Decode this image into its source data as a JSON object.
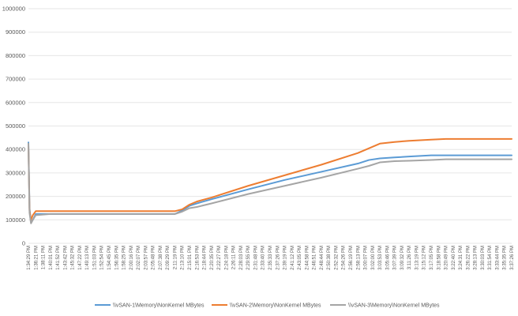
{
  "chart_data": {
    "type": "line",
    "title": "",
    "xlabel": "",
    "ylabel": "",
    "ylim": [
      0,
      1000000
    ],
    "yticks": [
      0,
      100000,
      200000,
      300000,
      400000,
      500000,
      600000,
      700000,
      800000,
      900000,
      1000000
    ],
    "grid": true,
    "legend_position": "bottom",
    "x_tick_labels": [
      "1:34:29 PM",
      "1:36:21 PM",
      "1:38:11 PM",
      "1:40:01 PM",
      "1:41:52 PM",
      "1:43:42 PM",
      "1:45:32 PM",
      "1:47:22 PM",
      "1:49:13 PM",
      "1:51:03 PM",
      "1:52:54 PM",
      "1:54:45 PM",
      "1:56:35 PM",
      "1:58:25 PM",
      "2:00:16 PM",
      "2:02:07 PM",
      "2:03:57 PM",
      "2:05:48 PM",
      "2:07:38 PM",
      "2:09:29 PM",
      "2:11:19 PM",
      "2:13:10 PM",
      "2:15:01 PM",
      "2:16:53 PM",
      "2:18:44 PM",
      "2:20:35 PM",
      "2:22:27 PM",
      "2:24:18 PM",
      "2:26:11 PM",
      "2:28:03 PM",
      "2:29:55 PM",
      "2:31:48 PM",
      "2:33:40 PM",
      "2:35:33 PM",
      "2:37:26 PM",
      "2:39:19 PM",
      "2:41:12 PM",
      "2:43:05 PM",
      "2:44:58 PM",
      "2:46:51 PM",
      "2:48:44 PM",
      "2:50:38 PM",
      "2:52:32 PM",
      "2:54:26 PM",
      "2:56:19 PM",
      "2:58:13 PM",
      "3:00:07 PM",
      "3:02:00 PM",
      "3:03:53 PM",
      "3:05:46 PM",
      "3:07:39 PM",
      "3:09:32 PM",
      "3:11:26 PM",
      "3:13:19 PM",
      "3:15:12 PM",
      "3:17:05 PM",
      "3:18:58 PM",
      "3:20:49 PM",
      "3:22:40 PM",
      "3:24:31 PM",
      "3:26:22 PM",
      "3:28:13 PM",
      "3:30:03 PM",
      "3:31:54 PM",
      "3:33:44 PM",
      "3:35:35 PM",
      "3:37:26 PM"
    ],
    "x_range": [
      0,
      66
    ],
    "series": [
      {
        "name": "\\\\vSAN-1\\Memory\\NonKernel MBytes",
        "color": "#5B9BD5",
        "points": [
          [
            0,
            430000
          ],
          [
            0.15,
            150000
          ],
          [
            0.35,
            90000
          ],
          [
            0.6,
            100000
          ],
          [
            1,
            125000
          ],
          [
            3,
            125000
          ],
          [
            20,
            125000
          ],
          [
            21,
            140000
          ],
          [
            22,
            160000
          ],
          [
            23,
            170000
          ],
          [
            25,
            188000
          ],
          [
            30,
            230000
          ],
          [
            35,
            270000
          ],
          [
            40,
            305000
          ],
          [
            45,
            340000
          ],
          [
            46.5,
            355000
          ],
          [
            48,
            362000
          ],
          [
            50,
            366000
          ],
          [
            52,
            370000
          ],
          [
            55,
            375000
          ],
          [
            60,
            375000
          ],
          [
            66,
            375000
          ]
        ]
      },
      {
        "name": "\\\\vSAN-2\\Memory\\NonKernel MBytes",
        "color": "#ED7D31",
        "points": [
          [
            0,
            420000
          ],
          [
            0.15,
            140000
          ],
          [
            0.35,
            100000
          ],
          [
            0.6,
            120000
          ],
          [
            1,
            137000
          ],
          [
            3,
            137000
          ],
          [
            20,
            137000
          ],
          [
            21,
            145000
          ],
          [
            22,
            165000
          ],
          [
            23,
            178000
          ],
          [
            25,
            195000
          ],
          [
            30,
            245000
          ],
          [
            35,
            290000
          ],
          [
            40,
            335000
          ],
          [
            45,
            385000
          ],
          [
            48,
            425000
          ],
          [
            50,
            432000
          ],
          [
            52,
            437000
          ],
          [
            55,
            442000
          ],
          [
            57,
            445000
          ],
          [
            60,
            445000
          ],
          [
            66,
            445000
          ]
        ]
      },
      {
        "name": "\\\\vSAN-3\\Memory\\NonKernel MBytes",
        "color": "#A5A5A5",
        "points": [
          [
            0,
            425000
          ],
          [
            0.15,
            130000
          ],
          [
            0.35,
            85000
          ],
          [
            0.6,
            100000
          ],
          [
            1,
            120000
          ],
          [
            3,
            125000
          ],
          [
            20,
            125000
          ],
          [
            21,
            135000
          ],
          [
            22,
            150000
          ],
          [
            23,
            155000
          ],
          [
            25,
            170000
          ],
          [
            30,
            210000
          ],
          [
            35,
            245000
          ],
          [
            40,
            280000
          ],
          [
            45,
            318000
          ],
          [
            46.5,
            330000
          ],
          [
            48,
            345000
          ],
          [
            50,
            350000
          ],
          [
            52,
            352000
          ],
          [
            55,
            355000
          ],
          [
            57,
            358000
          ],
          [
            60,
            358000
          ],
          [
            66,
            358000
          ]
        ]
      }
    ]
  }
}
